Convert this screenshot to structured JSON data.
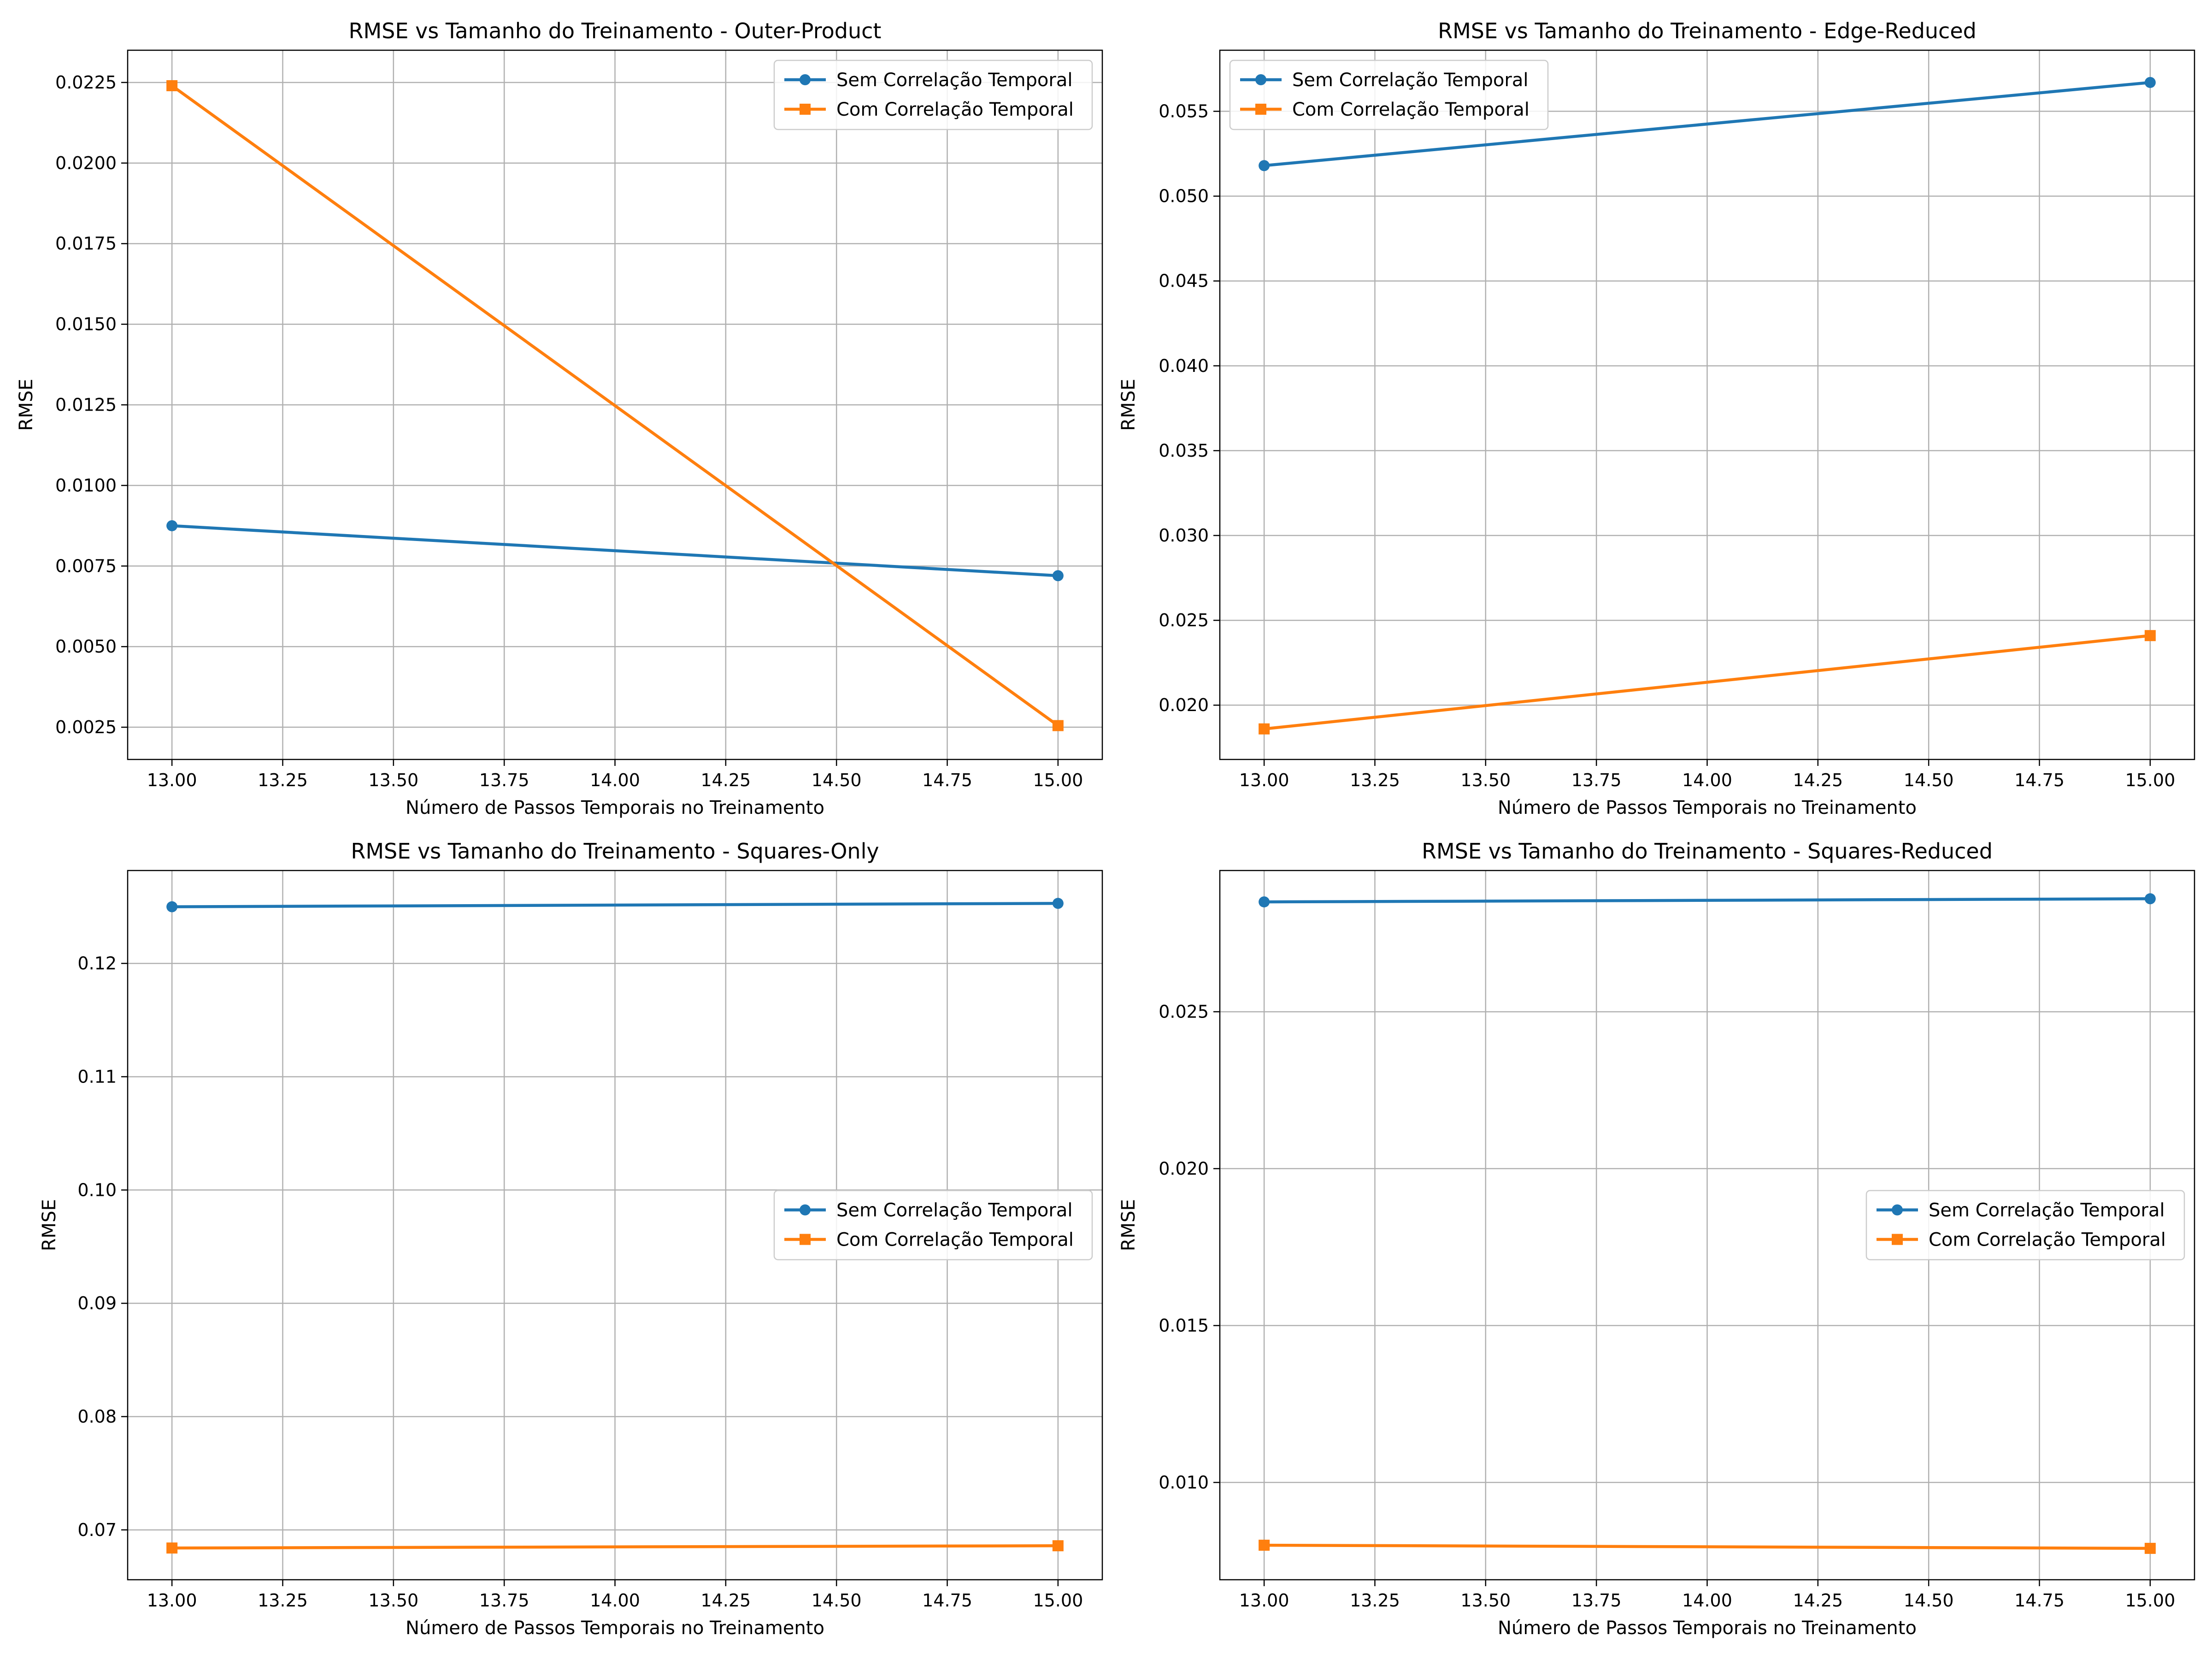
{
  "colors": {
    "sem": "#1f77b4",
    "com": "#ff7f0e",
    "grid": "#b0b0b0",
    "background": "#ffffff"
  },
  "chart_data": [
    {
      "type": "line",
      "title": "RMSE vs Tamanho do Treinamento - Outer-Product",
      "xlabel": "Número de Passos Temporais no Treinamento",
      "ylabel": "RMSE",
      "x": [
        13,
        15
      ],
      "xlim": [
        12.9,
        15.1
      ],
      "ylim": [
        0.0015,
        0.0235
      ],
      "xticks": [
        "13.00",
        "13.25",
        "13.50",
        "13.75",
        "14.00",
        "14.25",
        "14.50",
        "14.75",
        "15.00"
      ],
      "xtick_values": [
        13,
        13.25,
        13.5,
        13.75,
        14,
        14.25,
        14.5,
        14.75,
        15
      ],
      "yticks": [
        "0.0025",
        "0.0050",
        "0.0075",
        "0.0100",
        "0.0125",
        "0.0150",
        "0.0175",
        "0.0200",
        "0.0225"
      ],
      "ytick_values": [
        0.0025,
        0.005,
        0.0075,
        0.01,
        0.0125,
        0.015,
        0.0175,
        0.02,
        0.0225
      ],
      "grid": true,
      "legend_position": "upper right",
      "series": [
        {
          "name": "Sem Correlação Temporal",
          "values": [
            0.00875,
            0.0072
          ],
          "marker": "circle",
          "color": "#1f77b4"
        },
        {
          "name": "Com Correlação Temporal",
          "values": [
            0.0224,
            0.00255
          ],
          "marker": "square",
          "color": "#ff7f0e"
        }
      ]
    },
    {
      "type": "line",
      "title": "RMSE vs Tamanho do Treinamento - Edge-Reduced",
      "xlabel": "Número de Passos Temporais no Treinamento",
      "ylabel": "RMSE",
      "x": [
        13,
        15
      ],
      "xlim": [
        12.9,
        15.1
      ],
      "ylim": [
        0.0168,
        0.0586
      ],
      "xticks": [
        "13.00",
        "13.25",
        "13.50",
        "13.75",
        "14.00",
        "14.25",
        "14.50",
        "14.75",
        "15.00"
      ],
      "xtick_values": [
        13,
        13.25,
        13.5,
        13.75,
        14,
        14.25,
        14.5,
        14.75,
        15
      ],
      "yticks": [
        "0.020",
        "0.025",
        "0.030",
        "0.035",
        "0.040",
        "0.045",
        "0.050",
        "0.055"
      ],
      "ytick_values": [
        0.02,
        0.025,
        0.03,
        0.035,
        0.04,
        0.045,
        0.05,
        0.055
      ],
      "grid": true,
      "legend_position": "upper left",
      "series": [
        {
          "name": "Sem Correlação Temporal",
          "values": [
            0.0518,
            0.0567
          ],
          "marker": "circle",
          "color": "#1f77b4"
        },
        {
          "name": "Com Correlação Temporal",
          "values": [
            0.0186,
            0.0241
          ],
          "marker": "square",
          "color": "#ff7f0e"
        }
      ]
    },
    {
      "type": "line",
      "title": "RMSE vs Tamanho do Treinamento - Squares-Only",
      "xlabel": "Número de Passos Temporais no Treinamento",
      "ylabel": "RMSE",
      "x": [
        13,
        15
      ],
      "xlim": [
        12.9,
        15.1
      ],
      "ylim": [
        0.0656,
        0.1282
      ],
      "xticks": [
        "13.00",
        "13.25",
        "13.50",
        "13.75",
        "14.00",
        "14.25",
        "14.50",
        "14.75",
        "15.00"
      ],
      "xtick_values": [
        13,
        13.25,
        13.5,
        13.75,
        14,
        14.25,
        14.5,
        14.75,
        15
      ],
      "yticks": [
        "0.07",
        "0.08",
        "0.09",
        "0.10",
        "0.11",
        "0.12"
      ],
      "ytick_values": [
        0.07,
        0.08,
        0.09,
        0.1,
        0.11,
        0.12
      ],
      "grid": true,
      "legend_position": "center right",
      "series": [
        {
          "name": "Sem Correlação Temporal",
          "values": [
            0.125,
            0.1253
          ],
          "marker": "circle",
          "color": "#1f77b4"
        },
        {
          "name": "Com Correlação Temporal",
          "values": [
            0.0684,
            0.0686
          ],
          "marker": "square",
          "color": "#ff7f0e"
        }
      ]
    },
    {
      "type": "line",
      "title": "RMSE vs Tamanho do Treinamento - Squares-Reduced",
      "xlabel": "Número de Passos Temporais no Treinamento",
      "ylabel": "RMSE",
      "x": [
        13,
        15
      ],
      "xlim": [
        12.9,
        15.1
      ],
      "ylim": [
        0.0069,
        0.0295
      ],
      "xticks": [
        "13.00",
        "13.25",
        "13.50",
        "13.75",
        "14.00",
        "14.25",
        "14.50",
        "14.75",
        "15.00"
      ],
      "xtick_values": [
        13,
        13.25,
        13.5,
        13.75,
        14,
        14.25,
        14.5,
        14.75,
        15
      ],
      "yticks": [
        "0.010",
        "0.015",
        "0.020",
        "0.025"
      ],
      "ytick_values": [
        0.01,
        0.015,
        0.02,
        0.025
      ],
      "grid": true,
      "legend_position": "center right",
      "series": [
        {
          "name": "Sem Correlação Temporal",
          "values": [
            0.0285,
            0.0286
          ],
          "marker": "circle",
          "color": "#1f77b4"
        },
        {
          "name": "Com Correlação Temporal",
          "values": [
            0.008,
            0.0079
          ],
          "marker": "square",
          "color": "#ff7f0e"
        }
      ]
    }
  ]
}
